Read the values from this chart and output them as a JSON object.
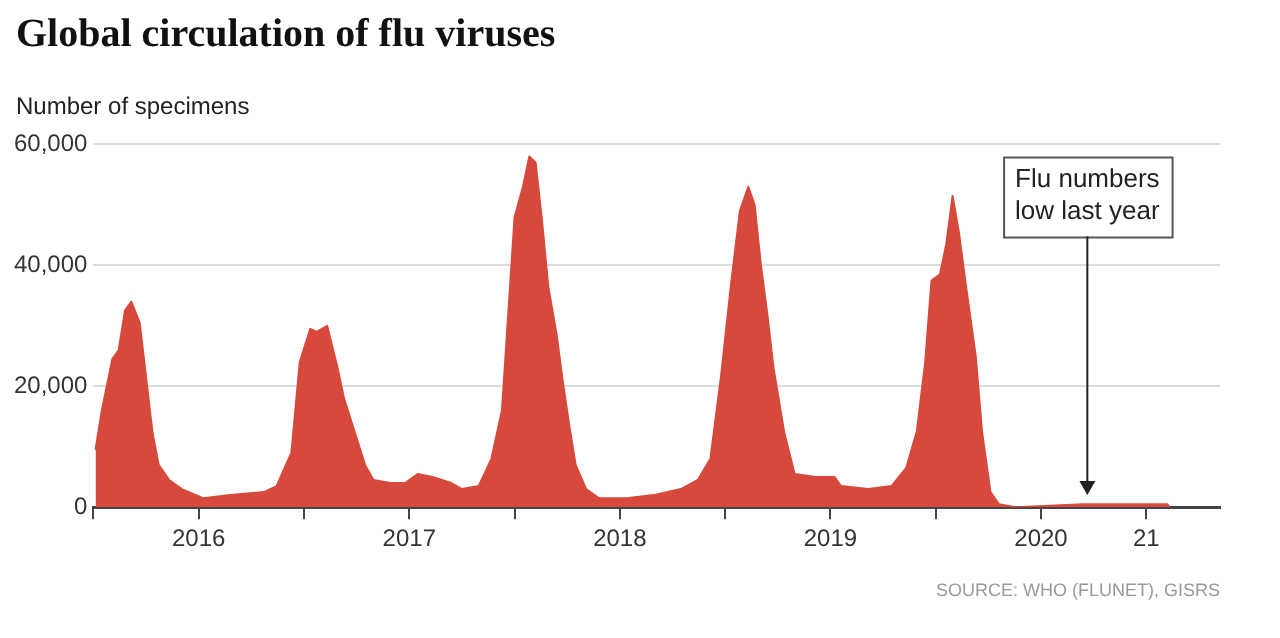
{
  "chart_data": {
    "type": "area",
    "title": "Global circulation of flu viruses",
    "ylabel": "Number of specimens",
    "x": [
      2016.01,
      2016.04,
      2016.09,
      2016.12,
      2016.15,
      2016.18,
      2016.22,
      2016.25,
      2016.28,
      2016.31,
      2016.36,
      2016.42,
      2016.52,
      2016.65,
      2016.81,
      2016.87,
      2016.94,
      2016.98,
      2017.03,
      2017.06,
      2017.11,
      2017.16,
      2017.19,
      2017.24,
      2017.29,
      2017.33,
      2017.41,
      2017.48,
      2017.54,
      2017.61,
      2017.7,
      2017.75,
      2017.83,
      2017.89,
      2017.94,
      2017.97,
      2018.0,
      2018.04,
      2018.07,
      2018.1,
      2018.13,
      2018.16,
      2018.2,
      2018.23,
      2018.26,
      2018.29,
      2018.34,
      2018.4,
      2018.53,
      2018.66,
      2018.79,
      2018.87,
      2018.93,
      2018.98,
      2019.03,
      2019.07,
      2019.11,
      2019.14,
      2019.17,
      2019.2,
      2019.23,
      2019.28,
      2019.33,
      2019.43,
      2019.52,
      2019.55,
      2019.68,
      2019.79,
      2019.86,
      2019.91,
      2019.95,
      2019.98,
      2020.02,
      2020.05,
      2020.08,
      2020.11,
      2020.14,
      2020.19,
      2020.22,
      2020.26,
      2020.3,
      2020.38,
      2020.7,
      2021.02,
      2021.1,
      2021.11
    ],
    "series": [
      {
        "color": "#d6493c",
        "values": [
          9500,
          16000,
          24500,
          26000,
          32500,
          34000,
          30500,
          21500,
          12500,
          7000,
          4500,
          3000,
          1500,
          2000,
          2500,
          3500,
          9000,
          24000,
          29500,
          29000,
          30000,
          23000,
          18000,
          12500,
          7000,
          4500,
          4000,
          4000,
          5500,
          5000,
          4000,
          3000,
          3500,
          8000,
          16000,
          32000,
          48000,
          53000,
          58000,
          57000,
          47500,
          36500,
          28500,
          20500,
          13500,
          7000,
          3000,
          1500,
          1500,
          2000,
          3000,
          4500,
          8000,
          21500,
          37500,
          49000,
          53000,
          50000,
          40000,
          32000,
          23000,
          12500,
          5500,
          5000,
          5000,
          3500,
          3000,
          3500,
          6500,
          12500,
          24000,
          37500,
          38500,
          43500,
          51500,
          45500,
          37500,
          25000,
          12500,
          2500,
          500,
          0,
          500,
          500,
          500,
          0
        ]
      }
    ],
    "xlim": [
      2016,
      2021.35
    ],
    "xticks": [
      {
        "value": 2016,
        "label": null
      },
      {
        "value": 2016.5,
        "label": "2016"
      },
      {
        "value": 2017,
        "label": null
      },
      {
        "value": 2017.5,
        "label": "2017"
      },
      {
        "value": 2018,
        "label": null
      },
      {
        "value": 2018.5,
        "label": "2018"
      },
      {
        "value": 2019,
        "label": null
      },
      {
        "value": 2019.5,
        "label": "2019"
      },
      {
        "value": 2020,
        "label": null
      },
      {
        "value": 2020.5,
        "label": "2020"
      },
      {
        "value": 2021,
        "label": "21"
      }
    ],
    "ylim": [
      0,
      60000
    ],
    "yticks": [
      0,
      {
        "value": 20000,
        "label": "20,000"
      },
      {
        "value": 40000,
        "label": "40,000"
      },
      {
        "value": 60000,
        "label": "60,000"
      }
    ],
    "grid": "y",
    "annotations": [
      {
        "text": "Flu numbers low last year",
        "x": 2020.72,
        "y": 2000
      },
      "SOURCE: WHO (FLUNET), GISRS"
    ]
  }
}
